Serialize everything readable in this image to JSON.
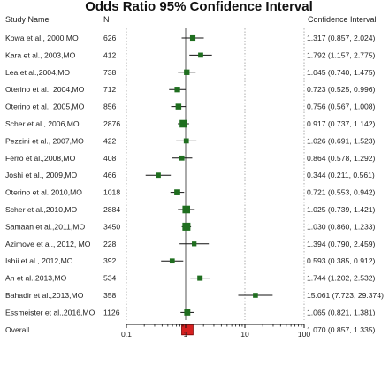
{
  "chart_data": {
    "type": "forest",
    "title": "Odds Ratio 95% Confidence Interval",
    "column_headers": {
      "study": "Study Name",
      "n": "N",
      "ci": "Confidence Interval"
    },
    "x_scale": "log",
    "xlim": [
      0.1,
      100
    ],
    "x_ticks": [
      0.1,
      1,
      10,
      100
    ],
    "x_tick_labels": [
      "0.1",
      "1",
      "10",
      "100"
    ],
    "reference_line": 1,
    "marker_color": "#1f6e1f",
    "summary_color": "#d62020",
    "studies": [
      {
        "name": "Kowa et al., 2000,MO",
        "n": "626",
        "or": 1.317,
        "lo": 0.857,
        "hi": 2.024,
        "ci_text": "1.317 (0.857, 2.024)"
      },
      {
        "name": "Kara et al., 2003,MO",
        "n": "412",
        "or": 1.792,
        "lo": 1.157,
        "hi": 2.775,
        "ci_text": "1.792 (1.157, 2.775)"
      },
      {
        "name": "Lea et al.,2004,MO",
        "n": "738",
        "or": 1.045,
        "lo": 0.74,
        "hi": 1.475,
        "ci_text": "1.045 (0.740, 1.475)"
      },
      {
        "name": "Oterino et al., 2004,MO",
        "n": "712",
        "or": 0.723,
        "lo": 0.525,
        "hi": 0.996,
        "ci_text": "0.723 (0.525, 0.996)"
      },
      {
        "name": "Oterino et al., 2005,MO",
        "n": "856",
        "or": 0.756,
        "lo": 0.567,
        "hi": 1.008,
        "ci_text": "0.756 (0.567, 1.008)"
      },
      {
        "name": "Scher et al., 2006,MO",
        "n": "2876",
        "or": 0.917,
        "lo": 0.737,
        "hi": 1.142,
        "ci_text": "0.917 (0.737, 1.142)"
      },
      {
        "name": "Pezzini et al., 2007,MO",
        "n": "422",
        "or": 1.026,
        "lo": 0.691,
        "hi": 1.523,
        "ci_text": "1.026 (0.691, 1.523)"
      },
      {
        "name": "Ferro et al.,2008,MO",
        "n": "408",
        "or": 0.864,
        "lo": 0.578,
        "hi": 1.292,
        "ci_text": "0.864 (0.578, 1.292)"
      },
      {
        "name": "Joshi et al., 2009,MO",
        "n": "466",
        "or": 0.344,
        "lo": 0.211,
        "hi": 0.561,
        "ci_text": "0.344 (0.211, 0.561)"
      },
      {
        "name": "Oterino et al.,2010,MO",
        "n": "1018",
        "or": 0.721,
        "lo": 0.553,
        "hi": 0.942,
        "ci_text": "0.721 (0.553, 0.942)"
      },
      {
        "name": "Scher et al.,2010,MO",
        "n": "2884",
        "or": 1.025,
        "lo": 0.739,
        "hi": 1.421,
        "ci_text": "1.025 (0.739, 1.421)"
      },
      {
        "name": "Samaan et al.,2011,MO",
        "n": "3450",
        "or": 1.03,
        "lo": 0.86,
        "hi": 1.233,
        "ci_text": "1.030 (0.860, 1.233)"
      },
      {
        "name": "Azimove et al., 2012, MO",
        "n": "228",
        "or": 1.394,
        "lo": 0.79,
        "hi": 2.459,
        "ci_text": "1.394 (0.790, 2.459)"
      },
      {
        "name": "Ishii et al., 2012,MO",
        "n": "392",
        "or": 0.593,
        "lo": 0.385,
        "hi": 0.912,
        "ci_text": "0.593 (0.385, 0.912)"
      },
      {
        "name": "An et al.,2013,MO",
        "n": "534",
        "or": 1.744,
        "lo": 1.202,
        "hi": 2.532,
        "ci_text": "1.744 (1.202, 2.532)"
      },
      {
        "name": "Bahadir et al.,2013,MO",
        "n": "358",
        "or": 15.061,
        "lo": 7.723,
        "hi": 29.374,
        "ci_text": "15.061 (7.723, 29.374)"
      },
      {
        "name": "Essmeister et al.,2016,MO",
        "n": "1126",
        "or": 1.065,
        "lo": 0.821,
        "hi": 1.381,
        "ci_text": "1.065 (0.821, 1.381)"
      }
    ],
    "overall": {
      "name": "Overall",
      "or": 1.07,
      "lo": 0.857,
      "hi": 1.335,
      "ci_text": "1.070 (0.857, 1.335)"
    }
  }
}
